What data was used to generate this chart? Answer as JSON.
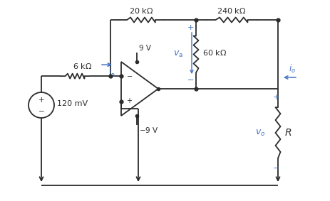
{
  "bg_color": "#ffffff",
  "line_color": "#2b2b2b",
  "blue_color": "#4472c4",
  "fig_width": 4.63,
  "fig_height": 2.83,
  "dpi": 100
}
